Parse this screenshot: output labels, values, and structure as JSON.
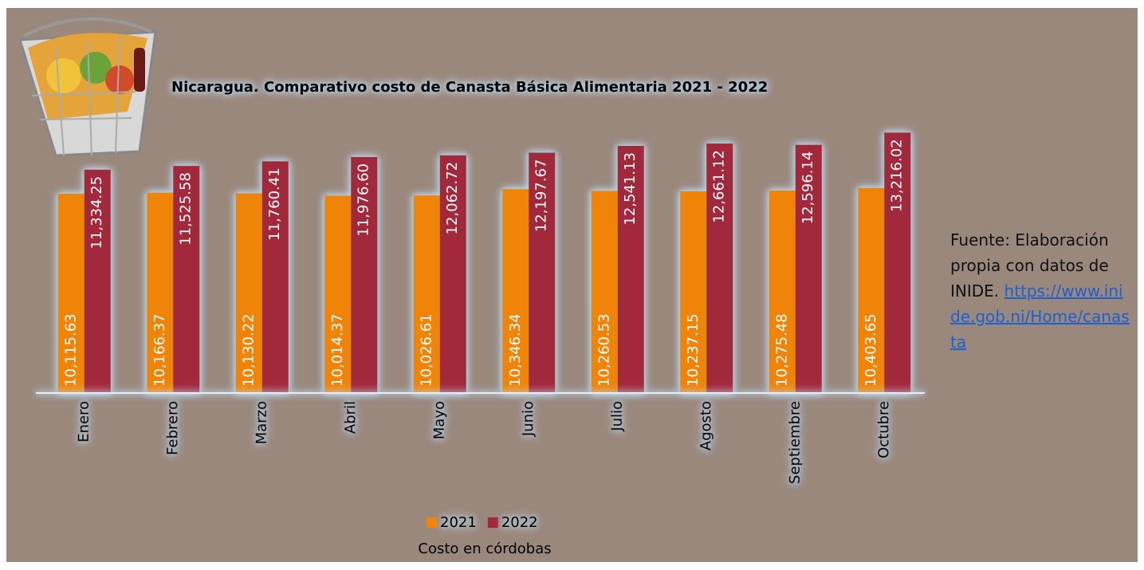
{
  "chart_data": {
    "type": "bar",
    "title": "Nicaragua. Comparativo costo de Canasta Básica Alimentaria 2021 - 2022",
    "categories": [
      "Enero",
      "Febrero",
      "Marzo",
      "Abril",
      "Mayo",
      "Junio",
      "Julio",
      "Agosto",
      "Septiembre",
      "Octubre"
    ],
    "series": [
      {
        "name": "2021",
        "color": "#f08409",
        "values": [
          10115.63,
          10166.37,
          10130.22,
          10014.37,
          10026.61,
          10346.34,
          10260.53,
          10237.15,
          10275.48,
          10403.65
        ],
        "value_labels": [
          "10,115.63",
          "10,166.37",
          "10,130.22",
          "10,014.37",
          "10,026.61",
          "10,346.34",
          "10,260.53",
          "10,237.15",
          "10,275.48",
          "10,403.65"
        ]
      },
      {
        "name": "2022",
        "color": "#a2283c",
        "values": [
          11334.25,
          11525.58,
          11760.41,
          11976.6,
          12062.72,
          12197.67,
          12541.13,
          12661.12,
          12596.14,
          13216.02
        ],
        "value_labels": [
          "11,334.25",
          "11,525.58",
          "11,760.41",
          "11,976.60",
          "12,062.72",
          "12,197.67",
          "12,541.13",
          "12,661.12",
          "12,596.14",
          "13,216.02"
        ]
      }
    ],
    "ylim": [
      0,
      14000
    ],
    "x_axis_label": "Costo en córdobas",
    "legend": "bottom",
    "source_text": "Fuente: Elaboración propia con datos de INIDE.",
    "source_link": "https://www.inide.gob.ni/Home/canasta"
  }
}
